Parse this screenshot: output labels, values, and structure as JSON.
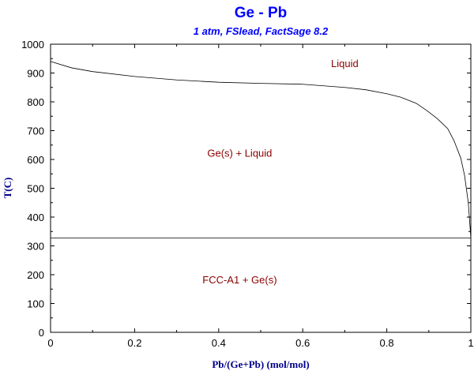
{
  "chart_data": {
    "type": "line",
    "title": "Ge - Pb",
    "subtitle": "1 atm, FSlead, FactSage 8.2",
    "xlabel": "Pb/(Ge+Pb) (mol/mol)",
    "ylabel": "T(C)",
    "xlim": [
      0,
      1
    ],
    "ylim": [
      0,
      1000
    ],
    "xticks": [
      "0",
      "0.2",
      "0.4",
      "0.6",
      "0.8",
      "1"
    ],
    "yticks": [
      "0",
      "100",
      "200",
      "300",
      "400",
      "500",
      "600",
      "700",
      "800",
      "900",
      "1000"
    ],
    "grid": false,
    "series": [
      {
        "x": [
          0,
          0.05,
          0.1,
          0.2,
          0.3,
          0.4,
          0.5,
          0.6,
          0.7,
          0.75,
          0.8,
          0.833,
          0.87,
          0.895,
          0.92,
          0.945,
          0.96,
          0.976,
          0.985,
          0.994,
          1.0
        ],
        "y": [
          940,
          918,
          905,
          888,
          876,
          868,
          864,
          861,
          850,
          842,
          828,
          816,
          795,
          770,
          742,
          707,
          665,
          605,
          545,
          449,
          327
        ]
      },
      {
        "x": [
          0,
          1
        ],
        "y": [
          327,
          327
        ]
      }
    ],
    "annotations": [
      {
        "text": "Liquid",
        "x": 0.7,
        "y": 920
      },
      {
        "text": "Ge(s) + Liquid",
        "x": 0.45,
        "y": 610
      },
      {
        "text": "FCC-A1 + Ge(s)",
        "x": 0.45,
        "y": 170
      }
    ],
    "colors": {
      "title": "#0000ff",
      "axis_label": "#00008b",
      "annotation": "#8b0000",
      "line": "#000000"
    }
  }
}
